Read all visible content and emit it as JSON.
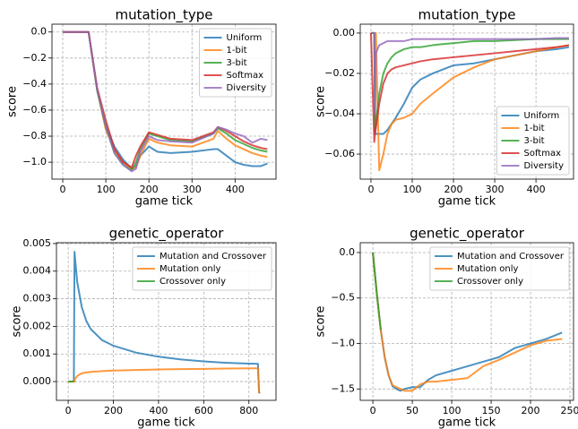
{
  "chart_data": [
    {
      "type": "line",
      "title": "mutation_type",
      "xlabel": "game tick",
      "ylabel": "score",
      "grid": true,
      "legend": "upper right",
      "x": [
        0,
        20,
        40,
        60,
        80,
        100,
        120,
        140,
        160,
        170,
        180,
        200,
        220,
        250,
        300,
        350,
        360,
        380,
        400,
        420,
        440,
        460,
        475
      ],
      "xlim": [
        -25,
        495
      ],
      "ylim": [
        -1.13,
        0.06
      ],
      "xticks": [
        0,
        100,
        200,
        300,
        400
      ],
      "yticks": [
        {
          "value": 0,
          "label": "0.0"
        },
        {
          "value": -0.2,
          "label": "−0.2"
        },
        {
          "value": -0.4,
          "label": "−0.4"
        },
        {
          "value": -0.6,
          "label": "−0.6"
        },
        {
          "value": -0.8,
          "label": "−0.8"
        },
        {
          "value": -1.0,
          "label": "−1.0"
        }
      ],
      "series": [
        {
          "name": "Uniform",
          "color": "#1f77b4",
          "values": [
            0,
            0,
            0,
            0,
            -0.45,
            -0.72,
            -0.88,
            -0.98,
            -1.05,
            -1.03,
            -0.95,
            -0.88,
            -0.92,
            -0.93,
            -0.92,
            -0.9,
            -0.9,
            -0.95,
            -1.0,
            -1.02,
            -1.03,
            -1.03,
            -1.01
          ]
        },
        {
          "name": "1-bit",
          "color": "#ff7f0e",
          "values": [
            0,
            0,
            0,
            0,
            -0.45,
            -0.75,
            -0.9,
            -1.0,
            -1.05,
            -1.04,
            -0.95,
            -0.82,
            -0.85,
            -0.87,
            -0.88,
            -0.82,
            -0.76,
            -0.82,
            -0.87,
            -0.9,
            -0.93,
            -0.95,
            -0.96
          ]
        },
        {
          "name": "3-bit",
          "color": "#2ca02c",
          "values": [
            0,
            0,
            0,
            0,
            -0.45,
            -0.73,
            -0.93,
            -1.02,
            -1.06,
            -1.0,
            -0.9,
            -0.78,
            -0.8,
            -0.83,
            -0.84,
            -0.78,
            -0.74,
            -0.78,
            -0.83,
            -0.86,
            -0.89,
            -0.91,
            -0.92
          ]
        },
        {
          "name": "Softmax",
          "color": "#d62728",
          "values": [
            0,
            0,
            0,
            0,
            -0.43,
            -0.68,
            -0.9,
            -1.0,
            -1.04,
            -0.95,
            -0.88,
            -0.77,
            -0.79,
            -0.82,
            -0.83,
            -0.77,
            -0.73,
            -0.76,
            -0.8,
            -0.84,
            -0.87,
            -0.89,
            -0.9
          ]
        },
        {
          "name": "Diversity",
          "color": "#9467bd",
          "values": [
            0,
            0,
            0,
            0,
            -0.44,
            -0.72,
            -0.93,
            -1.02,
            -1.07,
            -1.05,
            -0.92,
            -0.8,
            -0.83,
            -0.84,
            -0.85,
            -0.78,
            -0.73,
            -0.75,
            -0.78,
            -0.8,
            -0.85,
            -0.82,
            -0.83
          ]
        }
      ]
    },
    {
      "type": "line",
      "title": "mutation_type",
      "xlabel": "game tick",
      "ylabel": "score",
      "grid": true,
      "legend": "lower right",
      "x": [
        0,
        8,
        10,
        12,
        20,
        30,
        40,
        50,
        60,
        80,
        100,
        120,
        150,
        200,
        250,
        300,
        350,
        400,
        450,
        480
      ],
      "xlim": [
        -26,
        491
      ],
      "ylim": [
        -0.0724,
        0.0044
      ],
      "xticks": [
        0,
        100,
        200,
        300,
        400
      ],
      "yticks": [
        {
          "value": 0,
          "label": "0.00"
        },
        {
          "value": -0.02,
          "label": "−0.02"
        },
        {
          "value": -0.04,
          "label": "−0.04"
        },
        {
          "value": -0.06,
          "label": "−0.06"
        }
      ],
      "series": [
        {
          "name": "Uniform",
          "color": "#1f77b4",
          "values": [
            0,
            0,
            -0.05,
            -0.05,
            -0.05,
            -0.05,
            -0.048,
            -0.045,
            -0.042,
            -0.035,
            -0.027,
            -0.023,
            -0.02,
            -0.016,
            -0.015,
            -0.013,
            -0.011,
            -0.009,
            -0.008,
            -0.007
          ]
        },
        {
          "name": "1-bit",
          "color": "#ff7f0e",
          "values": [
            0,
            0,
            0,
            0,
            -0.068,
            -0.06,
            -0.05,
            -0.045,
            -0.043,
            -0.042,
            -0.04,
            -0.035,
            -0.03,
            -0.022,
            -0.017,
            -0.013,
            -0.011,
            -0.009,
            -0.007,
            -0.006
          ]
        },
        {
          "name": "3-bit",
          "color": "#2ca02c",
          "values": [
            0,
            0,
            -0.048,
            -0.045,
            -0.03,
            -0.02,
            -0.015,
            -0.012,
            -0.01,
            -0.008,
            -0.007,
            -0.007,
            -0.006,
            -0.005,
            -0.004,
            -0.004,
            -0.0035,
            -0.003,
            -0.003,
            -0.003
          ]
        },
        {
          "name": "Softmax",
          "color": "#d62728",
          "values": [
            0,
            -0.054,
            -0.05,
            -0.047,
            -0.035,
            -0.025,
            -0.02,
            -0.018,
            -0.017,
            -0.016,
            -0.015,
            -0.014,
            -0.013,
            -0.012,
            -0.011,
            -0.01,
            -0.009,
            -0.008,
            -0.007,
            -0.006
          ]
        },
        {
          "name": "Diversity",
          "color": "#9467bd",
          "values": [
            0,
            0,
            -0.04,
            -0.01,
            -0.006,
            -0.005,
            -0.004,
            -0.004,
            -0.004,
            -0.004,
            -0.003,
            -0.003,
            -0.003,
            -0.003,
            -0.003,
            -0.003,
            -0.003,
            -0.003,
            -0.0025,
            -0.0025
          ]
        }
      ]
    },
    {
      "type": "line",
      "title": "genetic_operator",
      "xlabel": "game tick",
      "ylabel": "score",
      "grid": true,
      "legend": "upper right",
      "x": [
        0,
        20,
        25,
        28,
        30,
        40,
        60,
        80,
        100,
        150,
        200,
        300,
        400,
        500,
        600,
        700,
        800,
        840,
        845,
        850
      ],
      "xlim": [
        -52,
        920
      ],
      "ylim": [
        -0.00068,
        0.00503
      ],
      "xticks": [
        0,
        200,
        400,
        600,
        800
      ],
      "yticks": [
        {
          "value": 0,
          "label": "0.000"
        },
        {
          "value": 0.001,
          "label": "0.001"
        },
        {
          "value": 0.002,
          "label": "0.002"
        },
        {
          "value": 0.003,
          "label": "0.003"
        },
        {
          "value": 0.004,
          "label": "0.004"
        },
        {
          "value": 0.005,
          "label": "0.005"
        }
      ],
      "series": [
        {
          "name": "Mutation and Crossover",
          "color": "#1f77b4",
          "values": [
            0,
            0,
            0,
            0.0047,
            0.0045,
            0.0036,
            0.0027,
            0.0022,
            0.0019,
            0.0015,
            0.0013,
            0.00105,
            0.0009,
            0.0008,
            0.00073,
            0.00068,
            0.00065,
            0.00064,
            -0.0004,
            -0.0004
          ]
        },
        {
          "name": "Mutation only",
          "color": "#ff7f0e",
          "values": [
            0,
            0,
            0,
            0,
            0.0001,
            0.0002,
            0.0003,
            0.00033,
            0.00035,
            0.00038,
            0.0004,
            0.00042,
            0.00044,
            0.00045,
            0.00046,
            0.00047,
            0.00048,
            0.00048,
            -0.0004,
            -0.0004
          ]
        },
        {
          "name": "Crossover only",
          "color": "#2ca02c",
          "values": [
            0,
            0,
            0,
            null,
            null,
            null,
            null,
            null,
            null,
            null,
            null,
            null,
            null,
            null,
            null,
            null,
            null,
            null,
            null,
            null
          ]
        }
      ]
    },
    {
      "type": "line",
      "title": "genetic_operator",
      "xlabel": "game tick",
      "ylabel": "score",
      "grid": true,
      "legend": "upper right",
      "x": [
        0,
        5,
        10,
        15,
        20,
        25,
        30,
        35,
        40,
        50,
        60,
        70,
        80,
        100,
        120,
        140,
        160,
        180,
        200,
        220,
        240
      ],
      "xlim": [
        -16,
        254.5
      ],
      "ylim": [
        -1.625,
        0.108
      ],
      "xticks": [
        0,
        50,
        100,
        150,
        200,
        250
      ],
      "yticks": [
        {
          "value": 0,
          "label": "0.0"
        },
        {
          "value": -0.5,
          "label": "−0.5"
        },
        {
          "value": -1.0,
          "label": "−1.0"
        },
        {
          "value": -1.5,
          "label": "−1.5"
        }
      ],
      "series": [
        {
          "name": "Mutation and Crossover",
          "color": "#1f77b4",
          "values": [
            0,
            -0.45,
            -0.85,
            -1.15,
            -1.35,
            -1.47,
            -1.5,
            -1.52,
            -1.5,
            -1.48,
            -1.48,
            -1.4,
            -1.35,
            -1.3,
            -1.25,
            -1.2,
            -1.15,
            -1.05,
            -1.0,
            -0.95,
            -0.88
          ]
        },
        {
          "name": "Mutation only",
          "color": "#ff7f0e",
          "values": [
            0,
            -0.45,
            -0.85,
            -1.15,
            -1.35,
            -1.46,
            -1.48,
            -1.5,
            -1.52,
            -1.52,
            -1.45,
            -1.42,
            -1.42,
            -1.4,
            -1.38,
            -1.25,
            -1.18,
            -1.1,
            -1.02,
            -0.97,
            -0.95
          ]
        },
        {
          "name": "Crossover only",
          "color": "#2ca02c",
          "values": [
            0,
            -0.45,
            -0.85,
            null,
            null,
            null,
            null,
            null,
            null,
            null,
            null,
            null,
            null,
            null,
            null,
            null,
            null,
            null,
            null,
            null,
            null
          ]
        }
      ]
    }
  ]
}
